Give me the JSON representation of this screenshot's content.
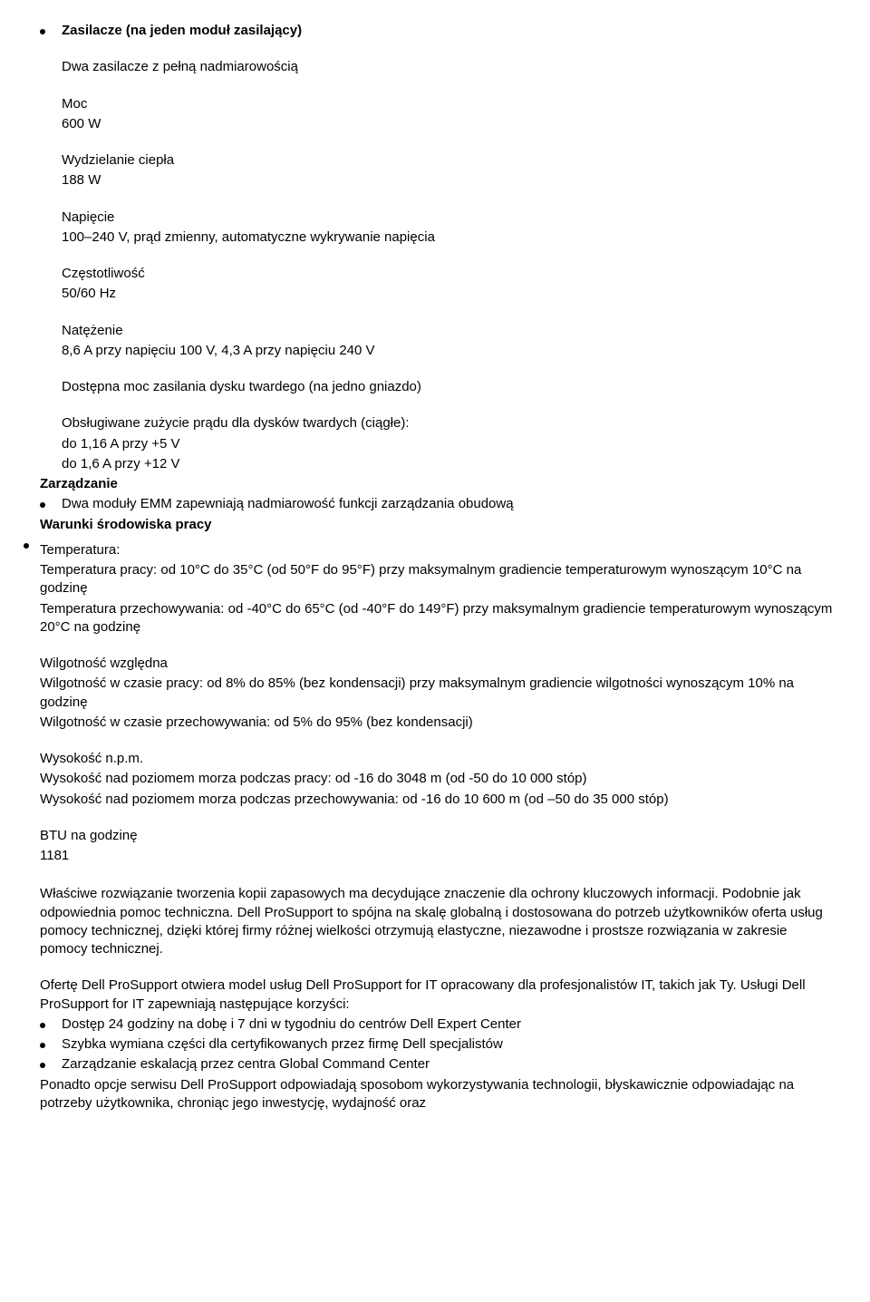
{
  "s1_title": "Zasilacze (na jeden moduł zasilający)",
  "s1_l1": "Dwa zasilacze z pełną nadmiarowością",
  "s2_h": "Moc",
  "s2_v": "600 W",
  "s3_h": "Wydzielanie ciepła",
  "s3_v": "188 W",
  "s4_h": "Napięcie",
  "s4_v": "100–240 V, prąd zmienny, automatyczne wykrywanie napięcia",
  "s5_h": "Częstotliwość",
  "s5_v": "50/60 Hz",
  "s6_h": "Natężenie",
  "s6_v": "8,6 A przy napięciu 100 V, 4,3 A przy napięciu 240 V",
  "s7_h": "Dostępna moc zasilania dysku twardego (na jedno gniazdo)",
  "s7_l1": "Obsługiwane zużycie prądu dla dysków twardych (ciągłe):",
  "s7_l2": "do 1,16 A przy +5 V",
  "s7_l3": "do 1,6 A przy +12 V",
  "mgmt_h": "Zarządzanie",
  "mgmt_b1": "Dwa moduły EMM zapewniają nadmiarowość funkcji zarządzania obudową",
  "env_h": "Warunki środowiska pracy",
  "temp_h": "Temperatura:",
  "temp_l1": "Temperatura pracy: od 10°C do 35°C (od 50°F do 95°F) przy maksymalnym gradiencie temperaturowym wynoszącym 10°C na godzinę",
  "temp_l2": "Temperatura przechowywania: od -40°C do 65°C (od -40°F do 149°F) przy maksymalnym gradiencie temperaturowym wynoszącym 20°C na godzinę",
  "hum_h": "Wilgotność względna",
  "hum_l1": "Wilgotność w czasie pracy: od 8% do 85% (bez kondensacji) przy maksymalnym gradiencie wilgotności wynoszącym 10% na godzinę",
  "hum_l2": "Wilgotność w czasie przechowywania: od 5% do 95% (bez kondensacji)",
  "alt_h": "Wysokość n.p.m.",
  "alt_l1": "Wysokość nad poziomem morza podczas pracy: od -16 do 3048 m (od -50 do 10 000 stóp)",
  "alt_l2": "Wysokość nad poziomem morza podczas przechowywania: od -16 do 10 600 m (od –50 do 35 000 stóp)",
  "btu_h": "BTU na godzinę",
  "btu_v": "1181",
  "p1": "Właściwe rozwiązanie tworzenia kopii zapasowych ma decydujące znaczenie dla ochrony kluczowych informacji. Podobnie jak odpowiednia pomoc techniczna. Dell ProSupport to spójna na skalę globalną i dostosowana do potrzeb użytkowników oferta usług pomocy technicznej, dzięki której firmy różnej wielkości otrzymują elastyczne, niezawodne i prostsze rozwiązania w zakresie pomocy technicznej.",
  "p2": "Ofertę Dell ProSupport otwiera model usług Dell ProSupport for IT opracowany dla profesjonalistów IT, takich jak Ty. Usługi Dell ProSupport for IT zapewniają następujące korzyści:",
  "p2_b1": "Dostęp 24 godziny na dobę i 7 dni w tygodniu do centrów Dell Expert Center",
  "p2_b2": "Szybka wymiana części dla certyfikowanych przez firmę Dell specjalistów",
  "p2_b3": "Zarządzanie eskalacją przez centra Global Command Center",
  "p3": "Ponadto opcje serwisu Dell ProSupport odpowiadają sposobom wykorzystywania technologii, błyskawicznie odpowiadając na potrzeby użytkownika, chroniąc jego inwestycję, wydajność oraz"
}
